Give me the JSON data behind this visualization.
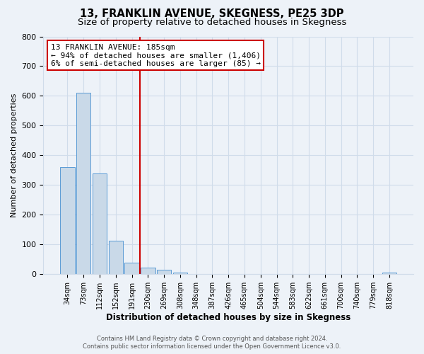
{
  "title": "13, FRANKLIN AVENUE, SKEGNESS, PE25 3DP",
  "subtitle": "Size of property relative to detached houses in Skegness",
  "xlabel": "Distribution of detached houses by size in Skegness",
  "ylabel": "Number of detached properties",
  "bar_labels": [
    "34sqm",
    "73sqm",
    "112sqm",
    "152sqm",
    "191sqm",
    "230sqm",
    "269sqm",
    "308sqm",
    "348sqm",
    "387sqm",
    "426sqm",
    "465sqm",
    "504sqm",
    "544sqm",
    "583sqm",
    "622sqm",
    "661sqm",
    "700sqm",
    "740sqm",
    "779sqm",
    "818sqm"
  ],
  "bar_values": [
    360,
    610,
    340,
    113,
    40,
    22,
    14,
    5,
    0,
    0,
    0,
    0,
    0,
    0,
    0,
    0,
    0,
    0,
    0,
    0,
    5
  ],
  "bar_color": "#c9d9e8",
  "bar_edge_color": "#5b9bd5",
  "vline_x": 4.5,
  "vline_color": "#cc0000",
  "annotation_line1": "13 FRANKLIN AVENUE: 185sqm",
  "annotation_line2": "← 94% of detached houses are smaller (1,406)",
  "annotation_line3": "6% of semi-detached houses are larger (85) →",
  "annotation_box_color": "#ffffff",
  "annotation_box_edge_color": "#cc0000",
  "ylim": [
    0,
    800
  ],
  "yticks": [
    0,
    100,
    200,
    300,
    400,
    500,
    600,
    700,
    800
  ],
  "grid_color": "#d0dcea",
  "background_color": "#edf2f8",
  "footer_line1": "Contains HM Land Registry data © Crown copyright and database right 2024.",
  "footer_line2": "Contains public sector information licensed under the Open Government Licence v3.0.",
  "title_fontsize": 10.5,
  "subtitle_fontsize": 9.5,
  "annot_fontsize": 8.0,
  "ylabel_fontsize": 8,
  "xlabel_fontsize": 8.5
}
